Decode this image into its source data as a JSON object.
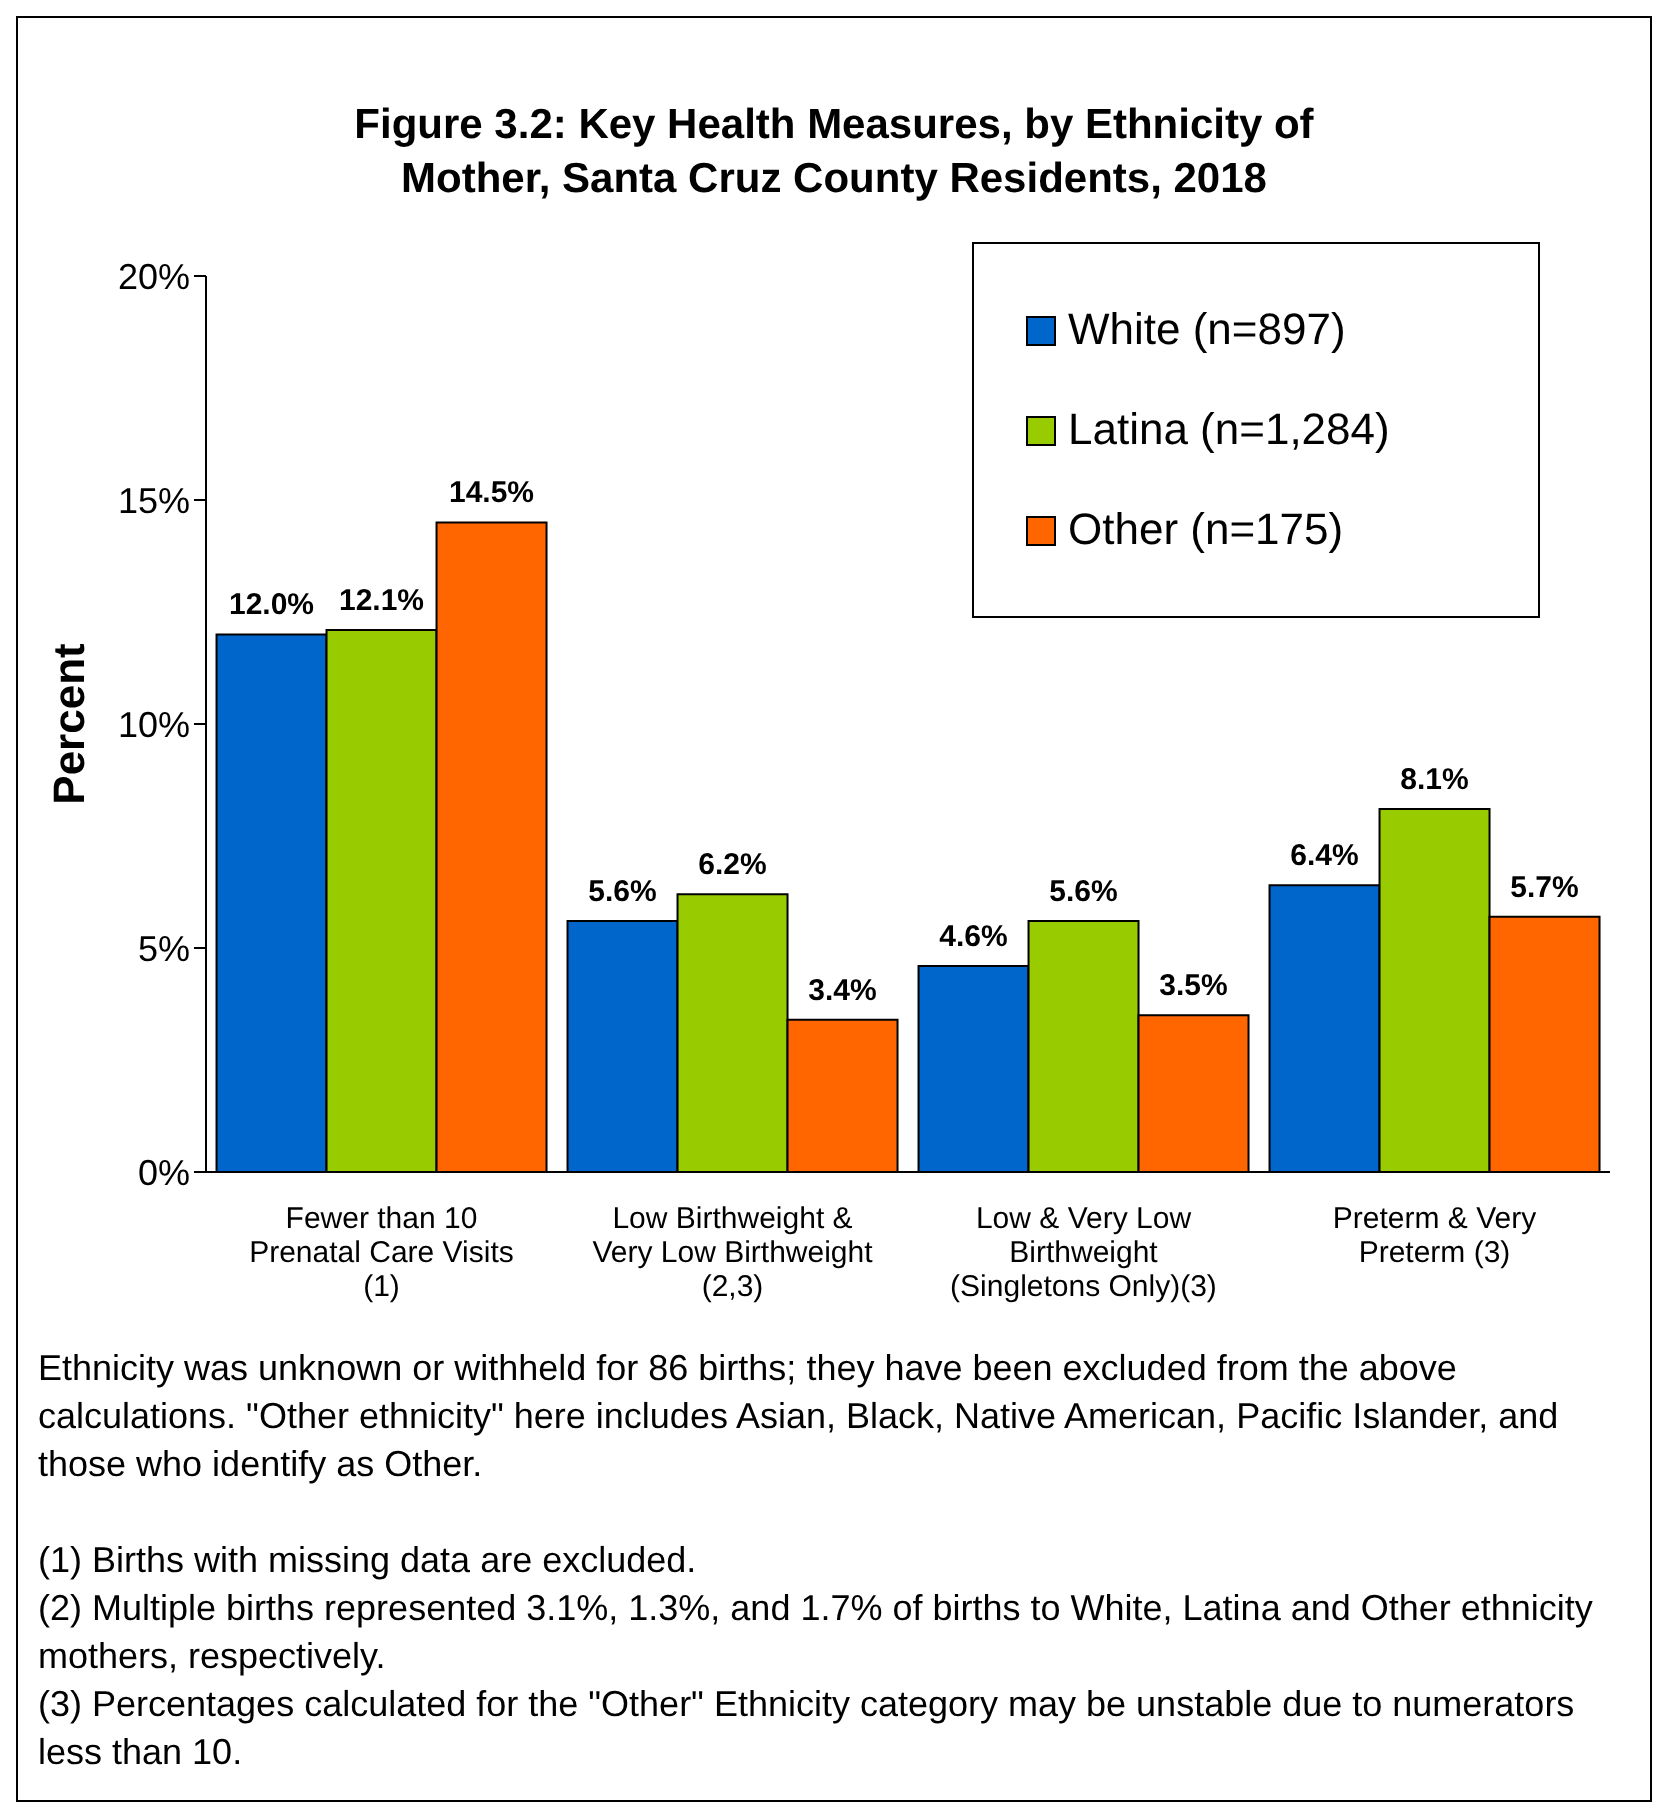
{
  "chart_data": {
    "type": "bar",
    "title": "Figure 3.2:  Key Health Measures, by Ethnicity of\nMother, Santa Cruz County Residents, 2018",
    "ylabel": "Percent",
    "categories": [
      "Fewer than 10\nPrenatal Care Visits\n(1)",
      "Low Birthweight &\nVery Low Birthweight\n(2,3)",
      "Low & Very Low\nBirthweight\n(Singletons Only)(3)",
      "Preterm & Very\nPreterm (3)"
    ],
    "series": [
      {
        "name": "White (n=897)",
        "color": "#0066cc",
        "values": [
          12.0,
          5.6,
          4.6,
          6.4
        ],
        "value_labels": [
          "12.0%",
          "5.6%",
          "4.6%",
          "6.4%"
        ]
      },
      {
        "name": "Latina (n=1,284)",
        "color": "#99cc00",
        "values": [
          12.1,
          6.2,
          5.6,
          8.1
        ],
        "value_labels": [
          "12.1%",
          "6.2%",
          "5.6%",
          "8.1%"
        ]
      },
      {
        "name": "Other (n=175)",
        "color": "#ff6600",
        "values": [
          14.5,
          3.4,
          3.5,
          5.7
        ],
        "value_labels": [
          "14.5%",
          "3.4%",
          "3.5%",
          "5.7%"
        ]
      }
    ],
    "ylim": [
      0,
      20
    ],
    "yticks": [
      {
        "value": 0,
        "label": "0%"
      },
      {
        "value": 5,
        "label": "5%"
      },
      {
        "value": 10,
        "label": "10%"
      },
      {
        "value": 15,
        "label": "15%"
      },
      {
        "value": 20,
        "label": "20%"
      }
    ],
    "grid": false,
    "legend": "top right",
    "annotations": [
      "Ethnicity was unknown or withheld for 86 births; they have been excluded from the above calculations.  \"Other ethnicity\" here includes Asian, Black, Native American, Pacific Islander, and those who identify as Other.",
      "(1) Births with missing data are excluded.",
      "(2) Multiple births represented 3.1%, 1.3%, and 1.7% of births to White, Latina and Other ethnicity mothers, respectively.",
      "(3) Percentages calculated for the \"Other\" Ethnicity category may be unstable due to numerators less than 10."
    ]
  }
}
